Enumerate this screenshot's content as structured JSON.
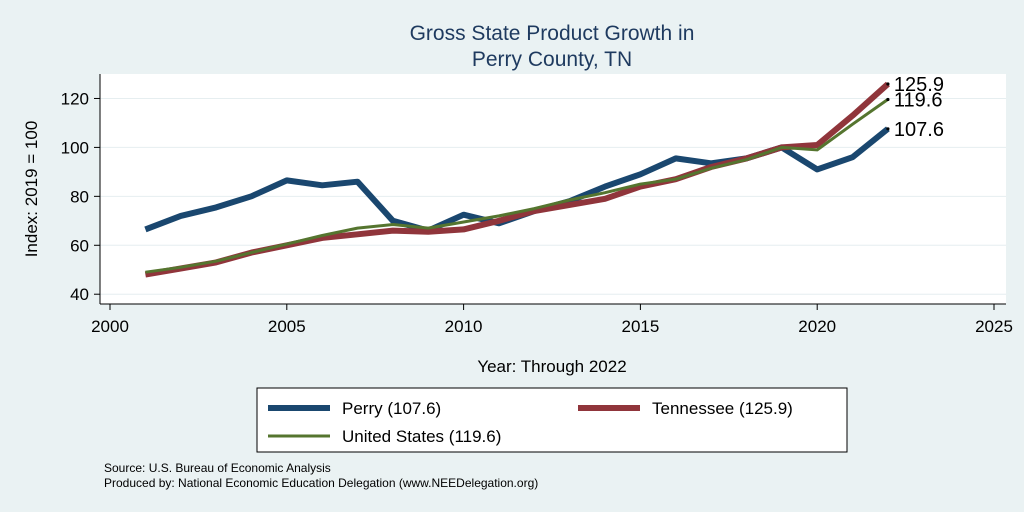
{
  "chart_data": {
    "type": "line",
    "title_lines": [
      "Gross State Product Growth in",
      "Perry County, TN"
    ],
    "xlabel": "Year: Through 2022",
    "ylabel": "Index: 2019 = 100",
    "xlim": [
      2000,
      2025
    ],
    "ylim": [
      36,
      130
    ],
    "xticks": [
      2000,
      2005,
      2010,
      2015,
      2020,
      2025
    ],
    "yticks": [
      40,
      60,
      80,
      100,
      120
    ],
    "grid": "horizontal",
    "x": [
      2001,
      2002,
      2003,
      2004,
      2005,
      2006,
      2007,
      2008,
      2009,
      2010,
      2011,
      2012,
      2013,
      2014,
      2015,
      2016,
      2017,
      2018,
      2019,
      2020,
      2021,
      2022
    ],
    "series": [
      {
        "name": "Perry",
        "color": "#1a476f",
        "values": [
          66.5,
          72,
          75.5,
          80,
          86.5,
          84.5,
          86,
          70,
          66,
          72.5,
          69,
          74,
          78,
          84,
          89,
          95.5,
          93.5,
          95.5,
          100,
          91,
          96,
          107.6
        ],
        "end_label": "107.6"
      },
      {
        "name": "Tennessee",
        "color": "#90353b",
        "values": [
          48,
          50.5,
          53,
          57,
          60,
          63,
          64.5,
          66,
          65.5,
          66.5,
          70,
          74,
          76.5,
          79,
          84,
          87,
          92,
          95.5,
          100,
          101,
          113,
          125.9
        ],
        "end_label": "125.9"
      },
      {
        "name": "United States",
        "color": "#55752f",
        "values": [
          49,
          51,
          53.5,
          57,
          60.5,
          64,
          67,
          68.5,
          67,
          69.5,
          72,
          75,
          78.5,
          81.5,
          85,
          87,
          91.5,
          95,
          100,
          99,
          109.5,
          119.6
        ],
        "end_label": "119.6"
      }
    ],
    "legend": {
      "placement": "bottom",
      "entries": [
        "Perry  (107.6)",
        "Tennessee (125.9)",
        "United States (119.6)"
      ]
    },
    "notes": [
      "Source: U.S. Bureau of Economic Analysis",
      "Produced by: National Economic Education Delegation (www.NEEDelegation.org)"
    ]
  }
}
